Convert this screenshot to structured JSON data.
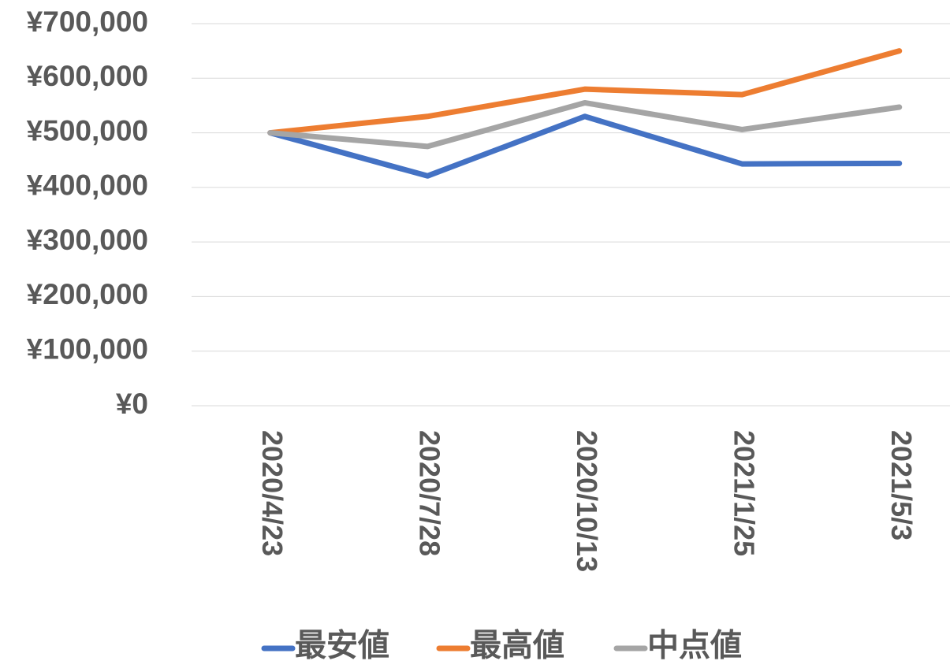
{
  "chart_data": {
    "type": "line",
    "categories": [
      "2020/4/23",
      "2020/7/28",
      "2020/10/13",
      "2021/1/25",
      "2021/5/3"
    ],
    "series": [
      {
        "name": "最安値",
        "color": "#4472c4",
        "values": [
          500000,
          421000,
          530000,
          443000,
          444000
        ]
      },
      {
        "name": "最高値",
        "color": "#ed7d31",
        "values": [
          500000,
          530000,
          580000,
          570000,
          650000
        ]
      },
      {
        "name": "中点値",
        "color": "#a5a5a5",
        "values": [
          500000,
          475000,
          555000,
          506000,
          547000
        ]
      }
    ],
    "ylim": [
      0,
      700000
    ],
    "yticks": [
      {
        "value": 0,
        "label": "¥0"
      },
      {
        "value": 100000,
        "label": "¥100,000"
      },
      {
        "value": 200000,
        "label": "¥200,000"
      },
      {
        "value": 300000,
        "label": "¥300,000"
      },
      {
        "value": 400000,
        "label": "¥400,000"
      },
      {
        "value": 500000,
        "label": "¥500,000"
      },
      {
        "value": 600000,
        "label": "¥600,000"
      },
      {
        "value": 700000,
        "label": "¥700,000"
      }
    ],
    "grid": true,
    "legend": "bottom"
  }
}
